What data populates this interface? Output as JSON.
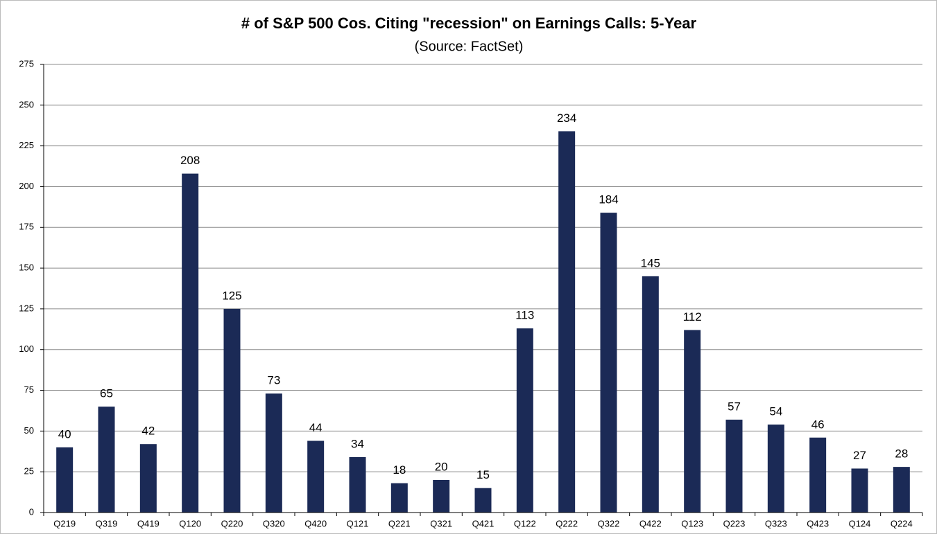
{
  "chart_data": {
    "type": "bar",
    "title": "# of S&P 500 Cos. Citing \"recession\" on Earnings Calls: 5-Year",
    "subtitle": "(Source: FactSet)",
    "categories": [
      "Q219",
      "Q319",
      "Q419",
      "Q120",
      "Q220",
      "Q320",
      "Q420",
      "Q121",
      "Q221",
      "Q321",
      "Q421",
      "Q122",
      "Q222",
      "Q322",
      "Q422",
      "Q123",
      "Q223",
      "Q323",
      "Q423",
      "Q124",
      "Q224"
    ],
    "values": [
      40,
      65,
      42,
      208,
      125,
      73,
      44,
      34,
      18,
      20,
      15,
      113,
      234,
      184,
      145,
      112,
      57,
      54,
      46,
      27,
      28
    ],
    "color": "#1b2a56",
    "ylim": [
      0,
      275
    ],
    "yticks": [
      0,
      25,
      50,
      75,
      100,
      125,
      150,
      175,
      200,
      225,
      250,
      275
    ],
    "grid": true
  }
}
